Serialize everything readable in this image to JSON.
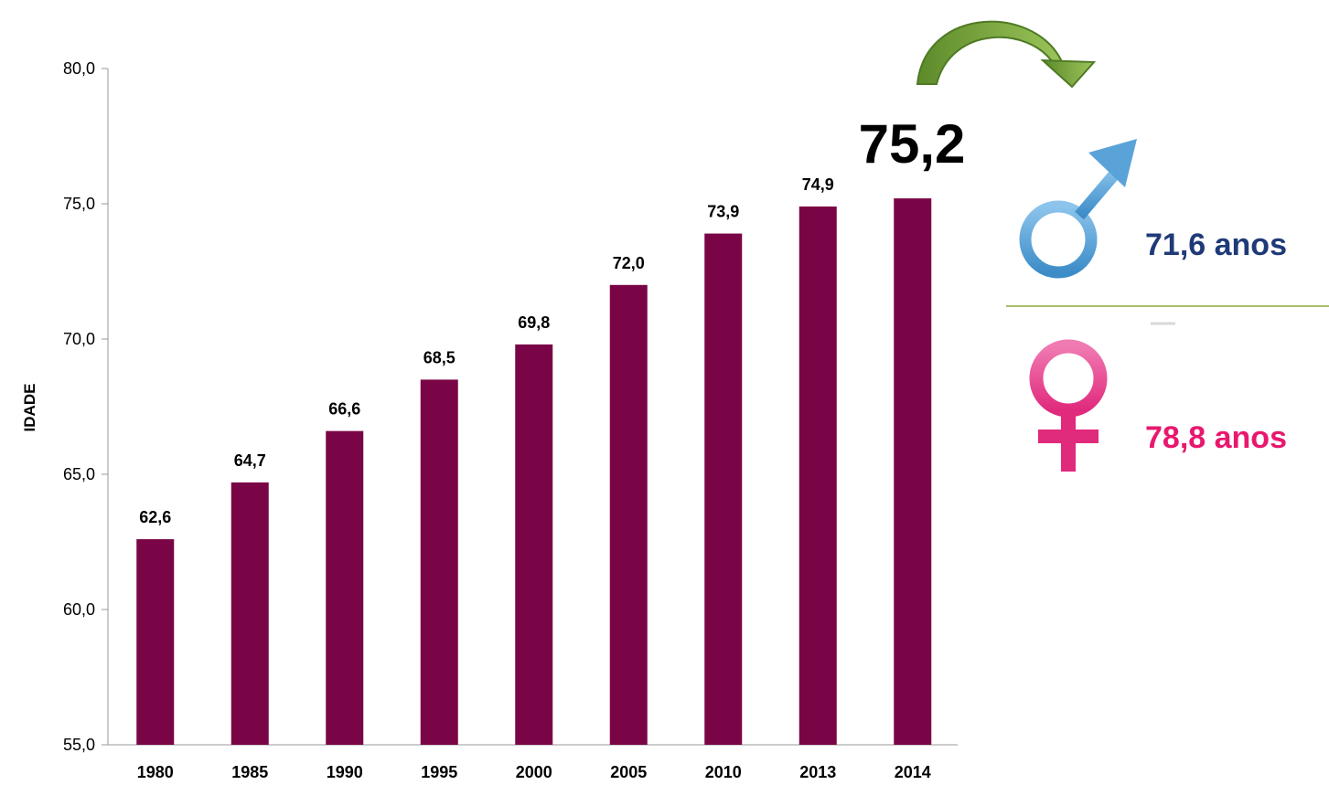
{
  "chart_data": {
    "type": "bar",
    "categories": [
      "1980",
      "1985",
      "1990",
      "1995",
      "2000",
      "2005",
      "2010",
      "2013",
      "2014"
    ],
    "values": [
      62.6,
      64.7,
      66.6,
      68.5,
      69.8,
      72.0,
      73.9,
      74.9,
      75.2
    ],
    "value_labels": [
      "62,6",
      "64,7",
      "66,6",
      "68,5",
      "69,8",
      "72,0",
      "73,9",
      "74,9",
      ""
    ],
    "ylabel": "IDADE",
    "ylim": [
      55,
      80
    ],
    "yticks": [
      55,
      60,
      65,
      70,
      75,
      80
    ],
    "ytick_labels": [
      "55,0",
      "60,0",
      "65,0",
      "70,0",
      "75,0",
      "80,0"
    ],
    "highlight_label": "75,2",
    "grid": false,
    "bar_color": "#7a0546"
  },
  "side_panel": {
    "male_value": "71,6 anos",
    "female_value": "78,8 anos",
    "male_color": "#1f3a78",
    "female_color": "#e8186e"
  }
}
